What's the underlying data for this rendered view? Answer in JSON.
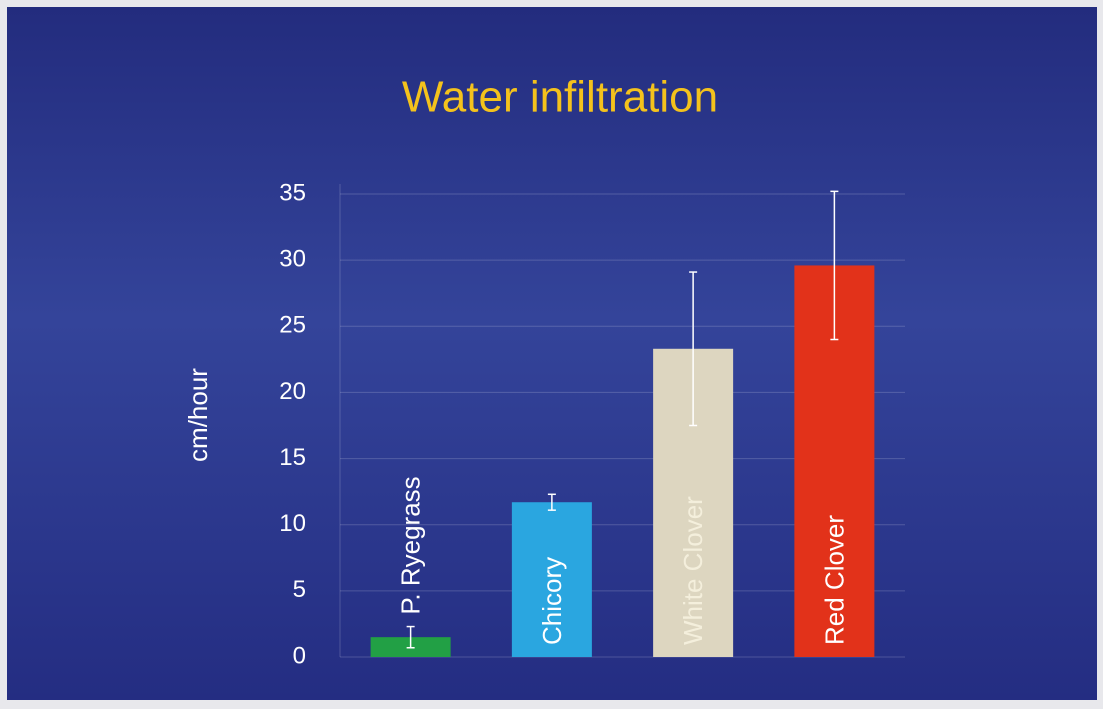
{
  "chart_data": {
    "type": "bar",
    "title": "Water infiltration",
    "y_label": "cm/hour",
    "categories": [
      "P. Ryegrass",
      "Chicory",
      "White Clover",
      "Red Clover"
    ],
    "values": [
      1.5,
      11.7,
      23.3,
      29.6
    ],
    "errors": [
      0.8,
      0.6,
      5.8,
      5.6
    ],
    "colors": [
      "#22a045",
      "#2aa6e0",
      "#ddd6c0",
      "#e2321a"
    ],
    "ylim": [
      0,
      35
    ],
    "yticks": [
      0,
      5,
      10,
      15,
      20,
      25,
      30,
      35
    ],
    "grid": true
  }
}
